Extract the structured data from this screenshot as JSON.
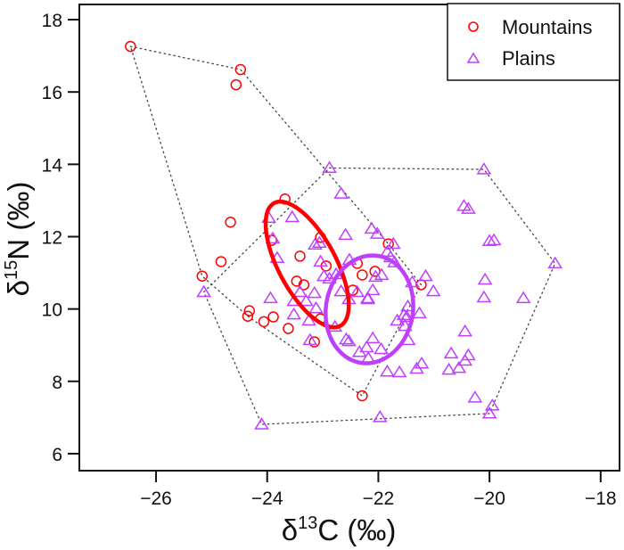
{
  "chart_data": {
    "type": "scatter",
    "title": "",
    "xlabel": "δ13C (‰)",
    "xlabel_parts": {
      "symbol": "δ",
      "superscript": "13",
      "element": "C",
      "unit": " (‰)"
    },
    "ylabel": "δ15N (‰)",
    "ylabel_parts": {
      "symbol": "δ",
      "superscript": "15",
      "element": "N",
      "unit": " (‰)"
    },
    "xlim": [
      -27.38,
      -17.66
    ],
    "ylim": [
      5.53,
      18.42
    ],
    "xticks": [
      -26,
      -24,
      -22,
      -20,
      -18
    ],
    "xtick_labels": [
      "−26",
      "−24",
      "−22",
      "−20",
      "−18"
    ],
    "yticks": [
      6,
      8,
      10,
      12,
      14,
      16,
      18
    ],
    "ytick_labels": [
      "6",
      "8",
      "10",
      "12",
      "14",
      "16",
      "18"
    ],
    "grid": false,
    "legend": {
      "placement": "top-right",
      "entries": [
        {
          "label": "Mountains",
          "marker": "circle",
          "color": "#ff0000"
        },
        {
          "label": "Plains",
          "marker": "triangle",
          "color": "#bf3fff"
        }
      ]
    },
    "series": [
      {
        "name": "Mountains",
        "marker": "circle",
        "color": "#ff0000",
        "points": [
          [
            -26.46,
            17.26
          ],
          [
            -24.48,
            16.62
          ],
          [
            -24.56,
            16.2
          ],
          [
            -23.68,
            13.04
          ],
          [
            -24.66,
            12.4
          ],
          [
            -23.92,
            11.9
          ],
          [
            -23.04,
            11.98
          ],
          [
            -23.41,
            11.46
          ],
          [
            -24.83,
            11.31
          ],
          [
            -25.17,
            10.91
          ],
          [
            -22.94,
            11.19
          ],
          [
            -23.47,
            10.77
          ],
          [
            -23.34,
            10.67
          ],
          [
            -24.32,
            9.95
          ],
          [
            -24.35,
            9.8
          ],
          [
            -24.06,
            9.65
          ],
          [
            -23.89,
            9.78
          ],
          [
            -23.62,
            9.46
          ],
          [
            -23.04,
            9.73
          ],
          [
            -23.15,
            9.09
          ],
          [
            -21.82,
            11.8
          ],
          [
            -22.38,
            11.26
          ],
          [
            -22.29,
            10.94
          ],
          [
            -22.06,
            11.04
          ],
          [
            -22.46,
            10.52
          ],
          [
            -21.23,
            10.67
          ],
          [
            -22.29,
            7.6
          ]
        ],
        "hull": [
          [
            -26.46,
            17.26
          ],
          [
            -24.48,
            16.62
          ],
          [
            -21.82,
            11.8
          ],
          [
            -21.23,
            10.67
          ],
          [
            -22.29,
            7.6
          ],
          [
            -24.35,
            9.8
          ],
          [
            -25.17,
            10.91
          ]
        ],
        "ellipse": {
          "cx": -23.28,
          "cy": 11.23,
          "semi_major": 1.95,
          "semi_minor": 0.82,
          "angle_deg": -60
        }
      },
      {
        "name": "Plains",
        "marker": "triangle",
        "color": "#bf3fff",
        "points": [
          [
            -22.88,
            13.9
          ],
          [
            -22.67,
            13.19
          ],
          [
            -23.97,
            12.52
          ],
          [
            -23.55,
            12.54
          ],
          [
            -23.9,
            11.95
          ],
          [
            -22.59,
            12.05
          ],
          [
            -23.14,
            11.78
          ],
          [
            -23.06,
            11.83
          ],
          [
            -23.82,
            11.41
          ],
          [
            -23.04,
            11.31
          ],
          [
            -22.52,
            11.36
          ],
          [
            -22.76,
            10.96
          ],
          [
            -25.14,
            10.47
          ],
          [
            -23.94,
            10.3
          ],
          [
            -23.41,
            10.47
          ],
          [
            -23.15,
            10.44
          ],
          [
            -23.52,
            10.22
          ],
          [
            -23.3,
            10.22
          ],
          [
            -23.52,
            9.85
          ],
          [
            -23.12,
            10.02
          ],
          [
            -23.25,
            9.68
          ],
          [
            -22.98,
            10.91
          ],
          [
            -22.88,
            10.84
          ],
          [
            -22.67,
            10.49
          ],
          [
            -23.23,
            9.14
          ],
          [
            -22.78,
            9.51
          ],
          [
            -22.53,
            9.11
          ],
          [
            -22.02,
            12.08
          ],
          [
            -21.73,
            11.8
          ],
          [
            -21.84,
            11.58
          ],
          [
            -21.78,
            11.43
          ],
          [
            -21.71,
            11.29
          ],
          [
            -22.05,
            10.89
          ],
          [
            -21.94,
            10.94
          ],
          [
            -21.39,
            10.74
          ],
          [
            -21.15,
            10.91
          ],
          [
            -22.1,
            10.52
          ],
          [
            -21.01,
            10.49
          ],
          [
            -22.53,
            10.27
          ],
          [
            -22.19,
            10.3
          ],
          [
            -21.47,
            10.07
          ],
          [
            -21.26,
            9.88
          ],
          [
            -21.54,
            9.83
          ],
          [
            -21.66,
            9.68
          ],
          [
            -21.49,
            9.78
          ],
          [
            -21.52,
            9.53
          ],
          [
            -21.46,
            9.14
          ],
          [
            -22.1,
            9.19
          ],
          [
            -22.21,
            8.94
          ],
          [
            -21.95,
            8.89
          ],
          [
            -22.58,
            9.16
          ],
          [
            -22.34,
            8.81
          ],
          [
            -22.18,
            8.64
          ],
          [
            -21.84,
            8.27
          ],
          [
            -21.62,
            8.25
          ],
          [
            -21.31,
            8.35
          ],
          [
            -21.22,
            8.49
          ],
          [
            -20.69,
            8.77
          ],
          [
            -20.38,
            8.72
          ],
          [
            -20.44,
            9.38
          ],
          [
            -20.44,
            8.57
          ],
          [
            -20.73,
            8.32
          ],
          [
            -20.55,
            8.37
          ],
          [
            -20.1,
            10.32
          ],
          [
            -20.26,
            7.55
          ],
          [
            -19.95,
            7.33
          ],
          [
            -20.0,
            7.11
          ],
          [
            -21.97,
            7.01
          ],
          [
            -24.1,
            6.81
          ],
          [
            -20.1,
            13.86
          ],
          [
            -20.46,
            12.85
          ],
          [
            -20.38,
            12.77
          ],
          [
            -20.0,
            11.88
          ],
          [
            -19.92,
            11.9
          ],
          [
            -18.82,
            11.26
          ],
          [
            -20.08,
            10.81
          ],
          [
            -19.39,
            10.3
          ],
          [
            -22.12,
            12.22
          ],
          [
            -22.38,
            10.47
          ],
          [
            -22.19,
            10.27
          ]
        ],
        "hull": [
          [
            -22.88,
            13.9
          ],
          [
            -20.1,
            13.86
          ],
          [
            -18.82,
            11.26
          ],
          [
            -20.0,
            7.11
          ],
          [
            -24.1,
            6.81
          ],
          [
            -25.14,
            10.47
          ]
        ],
        "ellipse": {
          "cx": -22.16,
          "cy": 9.99,
          "semi_major": 1.26,
          "semi_minor": 1.5,
          "angle_deg": -12
        }
      }
    ]
  }
}
